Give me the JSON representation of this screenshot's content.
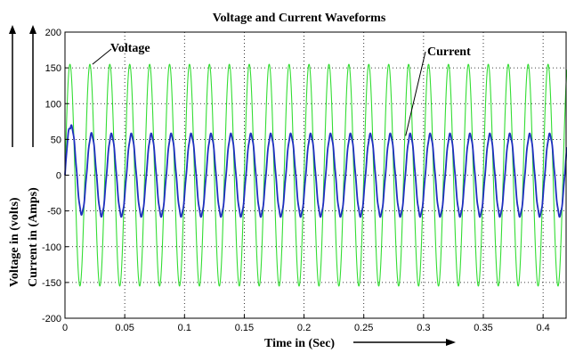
{
  "chart_data": {
    "type": "line",
    "title": "Voltage and Current Waveforms",
    "xlabel": "Time in (Sec)",
    "ylabel_voltage": "Voltage in (volts)",
    "ylabel_current": "Current in (Amps)",
    "xlim": [
      0,
      0.42
    ],
    "ylim": [
      -200,
      200
    ],
    "x_ticks": [
      0,
      0.05,
      0.1,
      0.15,
      0.2,
      0.25,
      0.3,
      0.35,
      0.4
    ],
    "x_tick_labels": [
      "0",
      "0.05",
      "0.1",
      "0.15",
      "0.2",
      "0.25",
      "0.3",
      "0.35",
      "0.4"
    ],
    "y_ticks": [
      -200,
      -150,
      -100,
      -50,
      0,
      50,
      100,
      150,
      200
    ],
    "y_tick_labels": [
      "-200",
      "-150",
      "-100",
      "-50",
      "0",
      "50",
      "100",
      "150",
      "200"
    ],
    "grid": true,
    "grid_style": "dotted",
    "annotations": [
      {
        "text": "Voltage",
        "target_series": "voltage",
        "point": [
          0.023,
          155
        ]
      },
      {
        "text": "Current",
        "target_series": "current",
        "point": [
          0.285,
          55
        ]
      }
    ],
    "series": [
      {
        "id": "voltage",
        "color": "#33dd33",
        "amplitude": 155,
        "frequency_hz": 60,
        "waveform": "sine",
        "x_start": 0,
        "x_end": 0.42
      },
      {
        "id": "current",
        "color": "#1f2fbf",
        "amplitude": 57,
        "frequency_hz": 60,
        "waveform": "sine",
        "phase_lag_deg": 30,
        "initial_transient_peak": 80,
        "x_start": 0,
        "x_end": 0.42
      }
    ]
  }
}
